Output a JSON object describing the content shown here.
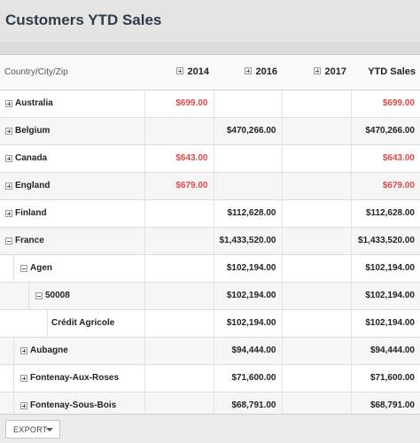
{
  "header": {
    "title": "Customers YTD Sales"
  },
  "grid": {
    "row_header_label": "Country/City/Zip",
    "columns": [
      {
        "label": "2014",
        "expandable": true
      },
      {
        "label": "2016",
        "expandable": true
      },
      {
        "label": "2017",
        "expandable": true
      },
      {
        "label": "YTD Sales",
        "expandable": false
      }
    ],
    "rows": [
      {
        "label": "Australia",
        "level": 0,
        "toggle": "plus",
        "cells": [
          "$699.00",
          "",
          "",
          "$699.00"
        ]
      },
      {
        "label": "Belgium",
        "level": 0,
        "toggle": "plus",
        "cells": [
          "",
          "$470,266.00",
          "",
          "$470,266.00"
        ]
      },
      {
        "label": "Canada",
        "level": 0,
        "toggle": "plus",
        "cells": [
          "$643.00",
          "",
          "",
          "$643.00"
        ]
      },
      {
        "label": "England",
        "level": 0,
        "toggle": "plus",
        "cells": [
          "$679.00",
          "",
          "",
          "$679.00"
        ]
      },
      {
        "label": "Finland",
        "level": 0,
        "toggle": "plus",
        "cells": [
          "",
          "$112,628.00",
          "",
          "$112,628.00"
        ]
      },
      {
        "label": "France",
        "level": 0,
        "toggle": "minus",
        "cells": [
          "",
          "$1,433,520.00",
          "",
          "$1,433,520.00"
        ]
      },
      {
        "label": "Agen",
        "level": 1,
        "toggle": "minus",
        "cells": [
          "",
          "$102,194.00",
          "",
          "$102,194.00"
        ]
      },
      {
        "label": "50008",
        "level": 2,
        "toggle": "minus",
        "cells": [
          "",
          "$102,194.00",
          "",
          "$102,194.00"
        ]
      },
      {
        "label": "Crédit Agricole",
        "level": 3,
        "toggle": "none",
        "cells": [
          "",
          "$102,194.00",
          "",
          "$102,194.00"
        ]
      },
      {
        "label": "Aubagne",
        "level": 1,
        "toggle": "plus",
        "cells": [
          "",
          "$94,444.00",
          "",
          "$94,444.00"
        ]
      },
      {
        "label": "Fontenay-Aux-Roses",
        "level": 1,
        "toggle": "plus",
        "cells": [
          "",
          "$71,600.00",
          "",
          "$71,600.00"
        ]
      },
      {
        "label": "Fontenay-Sous-Bois",
        "level": 1,
        "toggle": "plus",
        "cells": [
          "",
          "$68,791.00",
          "",
          "$68,791.00"
        ]
      }
    ]
  },
  "footer": {
    "export_label": "EXPORT",
    "export_icon": "caret-down-icon"
  },
  "colors": {
    "negative_text": "#e04848",
    "header_bg": "#e4e4e4",
    "row_alt_bg": "#f6f6f6"
  }
}
